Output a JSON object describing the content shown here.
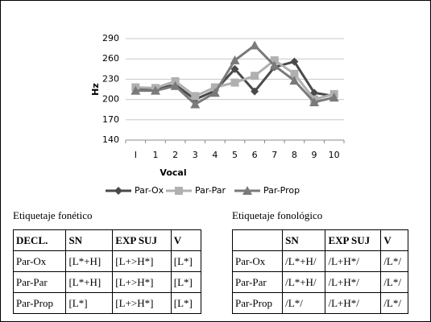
{
  "chart_data": {
    "type": "line",
    "xlabel": "Vocal",
    "ylabel": "Hz",
    "categories": [
      "I",
      "1",
      "2",
      "3",
      "4",
      "5",
      "6",
      "7",
      "8",
      "9",
      "10"
    ],
    "series": [
      {
        "name": "Par-Ox",
        "color": "#4a4a4a",
        "marker": "diamond",
        "values": [
          215,
          215,
          222,
          200,
          213,
          245,
          212,
          248,
          256,
          210,
          205
        ]
      },
      {
        "name": "Par-Par",
        "color": "#b0b0b0",
        "marker": "square",
        "values": [
          218,
          217,
          227,
          205,
          218,
          225,
          235,
          258,
          238,
          200,
          208
        ]
      },
      {
        "name": "Par-Prop",
        "color": "#7a7a7a",
        "marker": "triangle",
        "values": [
          213,
          213,
          220,
          193,
          210,
          258,
          280,
          250,
          228,
          196,
          203
        ]
      }
    ],
    "ylim": [
      140,
      290
    ],
    "yticks": [
      140,
      170,
      200,
      230,
      260,
      290
    ],
    "grid": true,
    "legend": "bottom"
  },
  "tables": [
    {
      "title": "Etiquetaje fonético",
      "header": [
        "DECL.",
        "SN",
        "EXP SUJ",
        "V"
      ],
      "rows": [
        [
          "Par-Ox",
          "[L*+H]",
          "[L+>H*]",
          "[L*]"
        ],
        [
          "Par-Par",
          "[L*+H]",
          "[L+>H*]",
          "[L*]"
        ],
        [
          "Par-Prop",
          "[L*]",
          "[L+>H*]",
          "[L*]"
        ]
      ]
    },
    {
      "title": "Etiquetaje fonológico",
      "header": [
        "SN",
        "EXP SUJ",
        "V"
      ],
      "rows": [
        [
          "Par-Ox",
          "/L*+H/",
          "/L+H*/",
          "/L*/"
        ],
        [
          "Par-Par",
          "/L*+H/",
          "/L+H*/",
          "/L*/"
        ],
        [
          "Par-Prop",
          "/L*/",
          "/L+H*/",
          "/L*/"
        ]
      ]
    }
  ]
}
